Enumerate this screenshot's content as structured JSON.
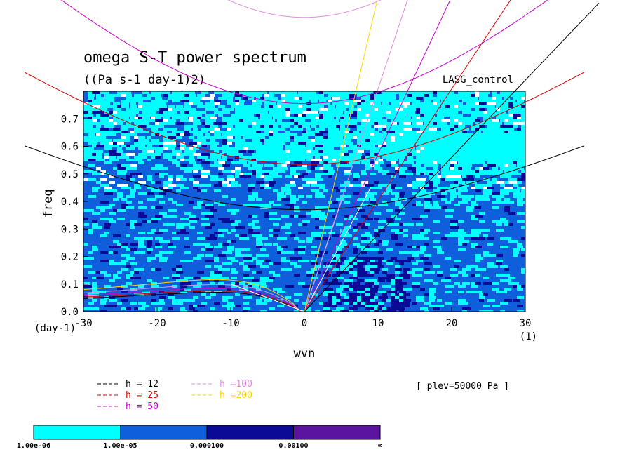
{
  "chart_data": {
    "type": "heatmap",
    "title": "omega S-T power spectrum",
    "subtitle": "((Pa s-1 day-1)2)",
    "run_label": "LASG_control",
    "xlabel": "wvn",
    "ylabel": "freq",
    "x_unit": "(1)",
    "y_unit": "(day-1)",
    "xlim": [
      -30,
      30
    ],
    "ylim": [
      0,
      0.8
    ],
    "x_ticks": [
      -30,
      -20,
      -10,
      0,
      10,
      20,
      30
    ],
    "x_tick_labels": [
      "-30",
      "-20",
      "-10",
      "0",
      "10",
      "20",
      "30"
    ],
    "y_ticks": [
      0,
      0.1,
      0.2,
      0.3,
      0.4,
      0.5,
      0.6,
      0.7
    ],
    "y_tick_labels": [
      "0.0",
      "0.1",
      "0.2",
      "0.3",
      "0.4",
      "0.5",
      "0.6",
      "0.7"
    ],
    "level_note": "[ plev=50000 Pa ]",
    "colorbar": {
      "labels": [
        "1.00e-06",
        "1.00e-05",
        "0.000100",
        "0.00100",
        "∞"
      ],
      "colors": [
        "#00ffff",
        "#0f5fdc",
        "#0a0a96",
        "#5a14a0"
      ]
    },
    "background_colors": {
      "dominant": "#0f5fdc",
      "low": "#00ffff",
      "high": "#0a0a96",
      "gap": "#ffffff"
    },
    "dispersion_curves": [
      {
        "label": "h = 12",
        "color": "#000000",
        "equivalent_depth_m": 12
      },
      {
        "label": "h = 25",
        "color": "#dc0000",
        "equivalent_depth_m": 25
      },
      {
        "label": "h = 50",
        "color": "#cc00cc",
        "equivalent_depth_m": 50
      },
      {
        "label": "h =100",
        "color": "#e08ce0",
        "equivalent_depth_m": 100
      },
      {
        "label": "h =200",
        "color": "#ffd700",
        "equivalent_depth_m": 200
      }
    ],
    "grid": false
  }
}
